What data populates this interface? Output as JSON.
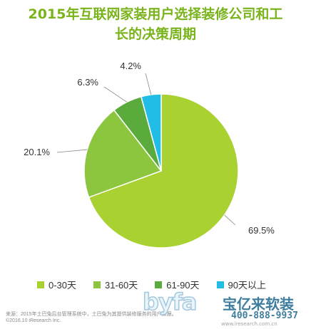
{
  "chart_data": {
    "type": "pie",
    "title_line1": "2015年互联网家装用户选择装修公司和工",
    "title_line2": "长的决策周期",
    "start_angle_deg": 0,
    "direction": "clockwise",
    "slices": [
      {
        "label": "0-30天",
        "value": 69.5,
        "value_label": "69.5%",
        "color": "#a9d131"
      },
      {
        "label": "31-60天",
        "value": 20.1,
        "value_label": "20.1%",
        "color": "#8cc63f"
      },
      {
        "label": "61-90天",
        "value": 6.3,
        "value_label": "6.3%",
        "color": "#5aab3c"
      },
      {
        "label": "90天以上",
        "value": 4.2,
        "value_label": "4.2%",
        "color": "#22bde6"
      }
    ],
    "legend_position": "bottom"
  },
  "footer": {
    "source": "来源：2015年土巴兔后台管理系统中，土巴兔为其提供装修服务的用户数据。",
    "copyright": "©2016.10 iResearch Inc."
  },
  "watermark": {
    "logo": "byfa",
    "brand": "宝亿来软装",
    "phone": "400-888-9937",
    "site": "www.iresearch.com.cn"
  },
  "colors": {
    "title": "#7ab41c",
    "leader_line": "#888888"
  }
}
